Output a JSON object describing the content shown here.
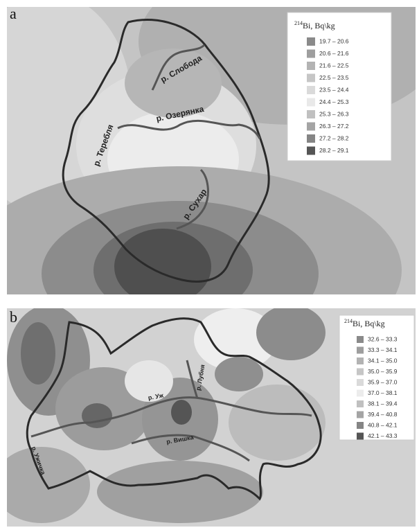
{
  "panels": [
    {
      "letter": "a",
      "legend": {
        "superscript": "214",
        "title": "Bi, Bq\\kg",
        "items": [
          {
            "label": "19.7 – 20.6",
            "color": "#8a8a8a"
          },
          {
            "label": "20.6 – 21.6",
            "color": "#9e9e9e"
          },
          {
            "label": "21.6 – 22.5",
            "color": "#b3b3b3"
          },
          {
            "label": "22.5 – 23.5",
            "color": "#c6c6c6"
          },
          {
            "label": "23.5 – 24.4",
            "color": "#dadada"
          },
          {
            "label": "24.4 – 25.3",
            "color": "#e9e9e9"
          },
          {
            "label": "25.3 – 26.3",
            "color": "#c0c0c0"
          },
          {
            "label": "26.3 – 27.2",
            "color": "#a4a4a4"
          },
          {
            "label": "27.2 – 28.2",
            "color": "#858585"
          },
          {
            "label": "28.2 – 29.1",
            "color": "#555555"
          }
        ]
      },
      "rivers": [
        "р. Слобода",
        "р. Озерянка",
        "р. Теребля",
        "р. Сухар"
      ]
    },
    {
      "letter": "b",
      "legend": {
        "superscript": "214",
        "title": "Bi, Bq\\kg",
        "items": [
          {
            "label": "32.6 – 33.3",
            "color": "#8a8a8a"
          },
          {
            "label": "33.3 – 34.1",
            "color": "#9e9e9e"
          },
          {
            "label": "34.1 – 35.0",
            "color": "#b3b3b3"
          },
          {
            "label": "35.0 – 35.9",
            "color": "#c6c6c6"
          },
          {
            "label": "35.9 – 37.0",
            "color": "#dadada"
          },
          {
            "label": "37.0 – 38.1",
            "color": "#ececec"
          },
          {
            "label": "38.1 – 39.4",
            "color": "#c0c0c0"
          },
          {
            "label": "39.4 – 40.8",
            "color": "#a4a4a4"
          },
          {
            "label": "40.8 – 42.1",
            "color": "#858585"
          },
          {
            "label": "42.1 – 43.3",
            "color": "#555555"
          }
        ]
      },
      "rivers": [
        "р. Лубня",
        "р. Уж",
        "р. Вишка",
        "р. Ужичка"
      ]
    }
  ]
}
